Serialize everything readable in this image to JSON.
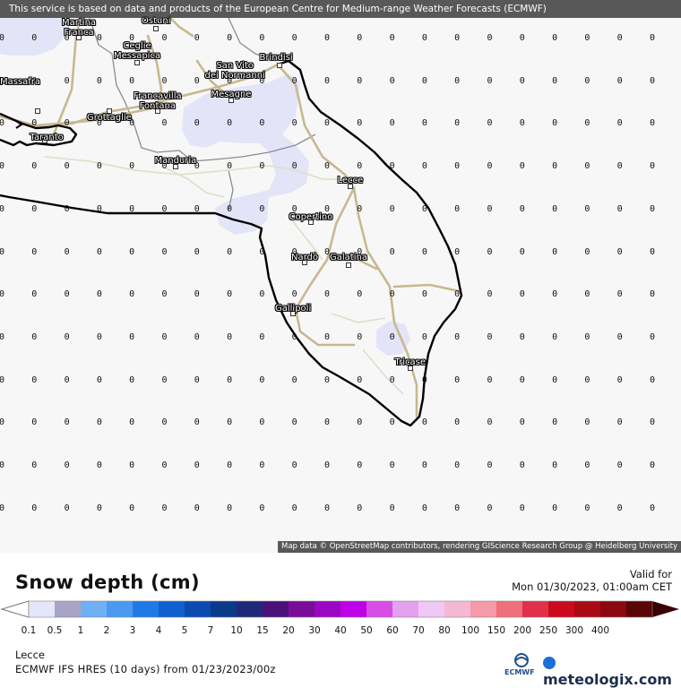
{
  "banner": "This service is based on data and products of the European Centre for Medium-range Weather Forecasts (ECMWF)",
  "attribution": "Map data © OpenStreetMap contributors, rendering GIScience Research Group @ Heidelberg University",
  "title": "Snow depth (cm)",
  "valid_label": "Valid for",
  "valid_date": "Mon 01/30/2023, 01:00am CET",
  "location": "Lecce",
  "model_run": "ECMWF IFS HRES (10 days) from 01/23/2023/00z",
  "ecmwf_logo": "ECMWF",
  "meteologix_logo": "meteologix.com",
  "grid_value": "0",
  "legend": {
    "labels": [
      "0.1",
      "0.5",
      "1",
      "2",
      "3",
      "4",
      "5",
      "7",
      "10",
      "15",
      "20",
      "30",
      "40",
      "50",
      "60",
      "70",
      "80",
      "100",
      "150",
      "200",
      "250",
      "300",
      "400"
    ],
    "colors": [
      "#e6e6fa",
      "#a7a4c6",
      "#6fb0f5",
      "#4b99f0",
      "#1f7ae8",
      "#0f5fcf",
      "#0b4bb0",
      "#0a3a8a",
      "#1e2a78",
      "#4b0f7a",
      "#7a0c9a",
      "#9a06c4",
      "#c000e6",
      "#d84de6",
      "#e6a0f0",
      "#f0c8f5",
      "#f5b8d2",
      "#f59aa8",
      "#f0707a",
      "#e0304a",
      "#cc0a1e",
      "#aa0a14",
      "#8a0810",
      "#5a0508"
    ]
  },
  "cities": [
    {
      "name": "Martina\nFranca"
    },
    {
      "name": "Ostuni"
    },
    {
      "name": "Ceglie\nMessapica"
    },
    {
      "name": "Brindisi"
    },
    {
      "name": "San Vito\ndei Normanni"
    },
    {
      "name": "Massafra"
    },
    {
      "name": "Francavilla\nFontana"
    },
    {
      "name": "Mesagne"
    },
    {
      "name": "Grottaglie"
    },
    {
      "name": "Taranto"
    },
    {
      "name": "Manduria"
    },
    {
      "name": "Lecce"
    },
    {
      "name": "Copertino"
    },
    {
      "name": "Nardò"
    },
    {
      "name": "Galatina"
    },
    {
      "name": "Gallipoli"
    },
    {
      "name": "Tricase"
    }
  ]
}
